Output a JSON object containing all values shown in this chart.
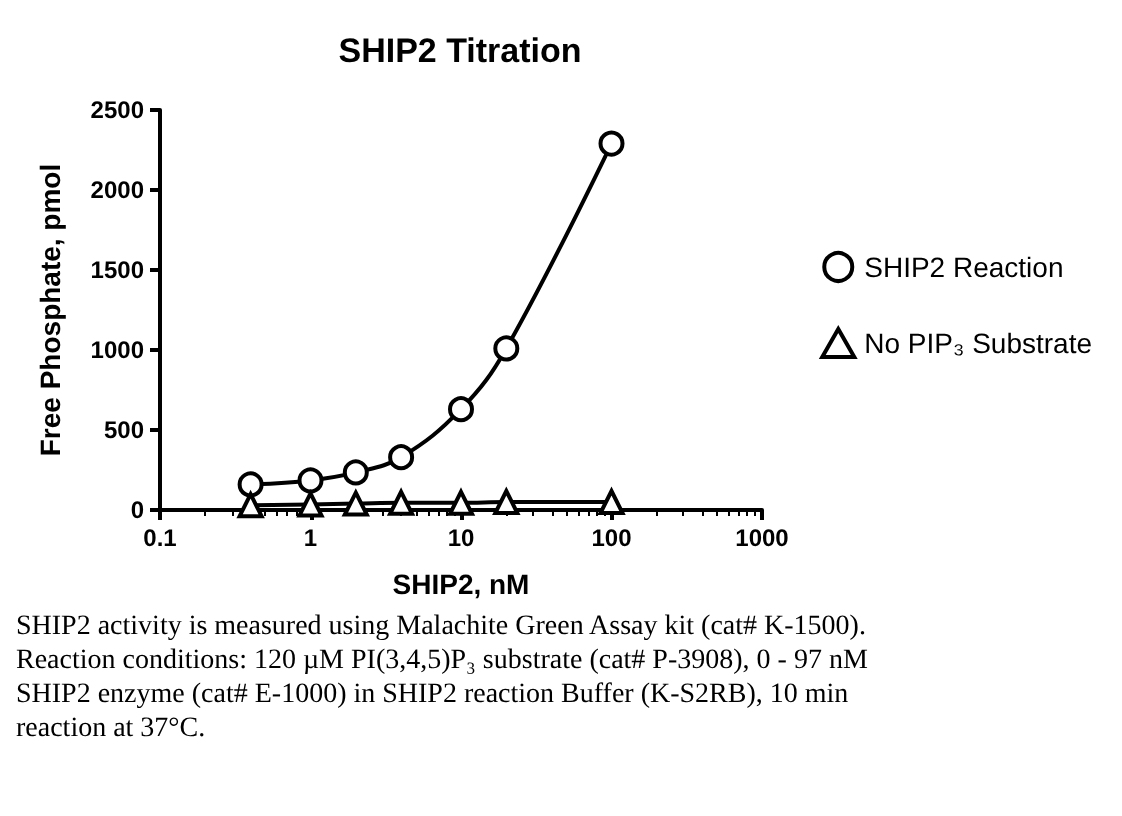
{
  "chart_data": {
    "type": "line",
    "title": "SHIP2 Titration",
    "xlabel": "SHIP2, nM",
    "ylabel": "Free Phosphate, pmol",
    "x": [
      0.4,
      1,
      2,
      4,
      10,
      20,
      100
    ],
    "series": [
      {
        "name": "SHIP2 Reaction",
        "color": "#000000",
        "marker": "circle",
        "values": [
          160,
          185,
          235,
          330,
          630,
          1010,
          2290
        ]
      },
      {
        "name": "No PIP₃ Substrate",
        "color": "#000000",
        "marker": "triangle",
        "values": [
          30,
          35,
          40,
          45,
          45,
          50,
          50
        ]
      }
    ],
    "log": "x",
    "xlim": [
      0.1,
      1000
    ],
    "xticks": [
      0.1,
      1,
      10,
      100,
      1000
    ],
    "ylim": [
      0,
      2500
    ],
    "yticks": [
      0,
      500,
      1000,
      1500,
      2000,
      2500
    ],
    "grid": false,
    "legend": "right",
    "annotations": [
      "SHIP2 activity is measured using Malachite Green Assay kit (cat# K-1500).  Reaction conditions: 120 µM PI(3,4,5)P₃ substrate (cat# P-3908), 0 - 97 nM SHIP2 enzyme (cat# E-1000) in SHIP2 reaction Buffer (K-S2RB), 10 min reaction at 37°C."
    ]
  }
}
